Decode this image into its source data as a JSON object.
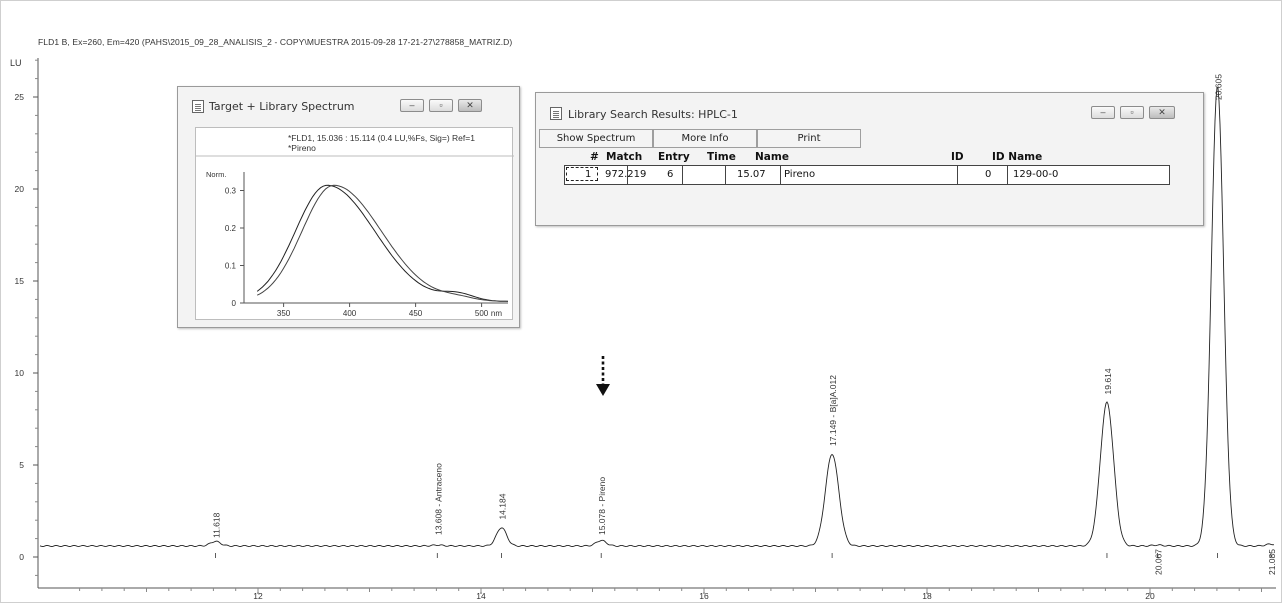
{
  "chromatogram": {
    "title": "FLD1 B, Ex=260, Em=420 (PAHS\\2015_09_28_ANALISIS_2 - COPY\\MUESTRA 2015-09-28 17-21-27\\278858_MATRIZ.D)",
    "y_unit": "LU",
    "y_ticks": [
      "0",
      "5",
      "10",
      "15",
      "20",
      "25"
    ],
    "x_ticks": [
      "12",
      "14",
      "16",
      "18",
      "20"
    ],
    "peaks": [
      {
        "time": 11.618,
        "height": 0.25,
        "label": "11.618"
      },
      {
        "time": 13.608,
        "height": 0.05,
        "label": "13.608 - Antraceno"
      },
      {
        "time": 14.184,
        "height": 1.0,
        "label": "14.184"
      },
      {
        "time": 15.078,
        "height": 0.3,
        "label": "15.078 - Pireno"
      },
      {
        "time": 17.149,
        "height": 5.0,
        "label": "17.149 - B[a]A.012"
      },
      {
        "time": 19.614,
        "height": 7.8,
        "label": "19.614"
      },
      {
        "time": 20.067,
        "height": 0.05,
        "label": "20.067"
      },
      {
        "time": 20.605,
        "height": 25.0,
        "label": "20.605"
      },
      {
        "time": 21.085,
        "height": 0.1,
        "label": "21.085"
      }
    ]
  },
  "chart_data": {
    "type": "line",
    "title": "FLD1 B, Ex=260, Em=420 (PAHS\\2015_09_28_ANALISIS_2 - COPY\\MUESTRA 2015-09-28 17-21-27\\278858_MATRIZ.D)",
    "xlabel": "",
    "ylabel": "LU",
    "xlim": [
      10.2,
      21.2
    ],
    "ylim": [
      -1,
      27
    ],
    "grid": false,
    "baseline": 0.6,
    "series": [
      {
        "peaks": [
          {
            "time": 11.618,
            "height": 0.25
          },
          {
            "time": 13.608,
            "height": 0.05
          },
          {
            "time": 14.184,
            "height": 1.0
          },
          {
            "time": 15.078,
            "height": 0.3
          },
          {
            "time": 17.149,
            "height": 5.0
          },
          {
            "time": 19.614,
            "height": 7.8
          },
          {
            "time": 20.067,
            "height": 0.05
          },
          {
            "time": 20.605,
            "height": 25.0
          },
          {
            "time": 21.085,
            "height": 0.1
          }
        ]
      }
    ]
  },
  "spectrum_window": {
    "title": "Target + Library Spectrum",
    "info_line1": "*FLD1, 15.036 : 15.114 (0.4 LU,%Fs, Sig=) Ref=1",
    "info_line2": "*Pireno",
    "y_label": "Norm.",
    "y_ticks": [
      "0",
      "0.1",
      "0.2",
      "0.3"
    ],
    "x_ticks": [
      "350",
      "400",
      "450",
      "500"
    ],
    "x_unit": "nm"
  },
  "library_window": {
    "title": "Library Search Results: HPLC-1",
    "buttons": {
      "show_spectrum": "Show Spectrum",
      "more_info": "More Info",
      "print": "Print"
    },
    "columns": {
      "num": "#",
      "match": "Match",
      "entry": "Entry",
      "time": "Time",
      "name": "Name",
      "id": "ID",
      "id_name": "ID Name"
    },
    "row": {
      "num": "1",
      "match": "972.219",
      "entry": "6",
      "time": "15.07",
      "name": "Pireno",
      "id": "0",
      "id_name": "129-00-0"
    }
  },
  "icons": {
    "arrow": "dotted-down-arrow-icon"
  }
}
